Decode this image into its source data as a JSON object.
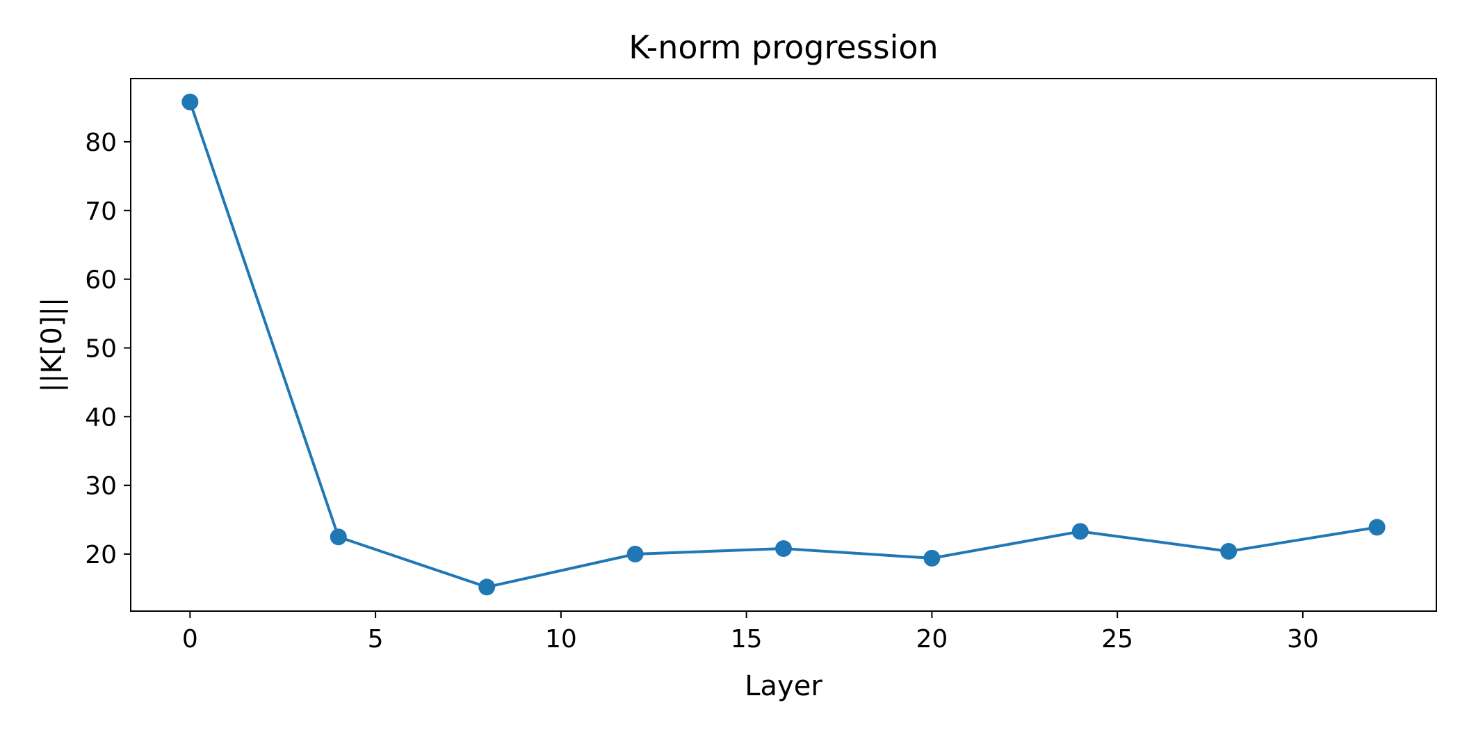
{
  "colors": {
    "series": "#1f77b4",
    "axes": "#000000",
    "background": "#ffffff"
  },
  "chart_data": {
    "type": "line",
    "title": "K-norm progression",
    "xlabel": "Layer",
    "ylabel": "||K[0]||",
    "xlim": [
      -1.6,
      33.6
    ],
    "ylim": [
      11.7,
      89.2
    ],
    "xticks": [
      0,
      5,
      10,
      15,
      20,
      25,
      30
    ],
    "yticks": [
      20,
      30,
      40,
      50,
      60,
      70,
      80
    ],
    "grid": false,
    "legend": "none",
    "series": [
      {
        "x": [
          0,
          4,
          8,
          12,
          16,
          20,
          24,
          28,
          32
        ],
        "y": [
          85.8,
          22.5,
          15.2,
          20.0,
          20.8,
          19.4,
          23.3,
          20.4,
          23.9
        ],
        "marker": "circle"
      }
    ]
  }
}
